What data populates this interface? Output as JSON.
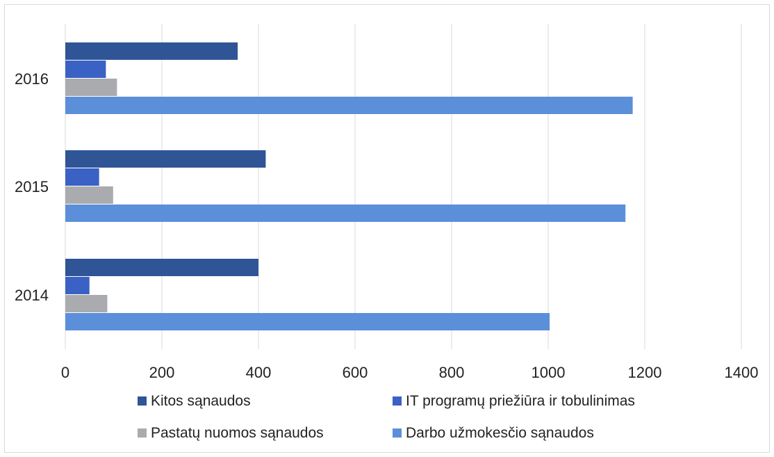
{
  "chart_data": {
    "type": "bar",
    "orientation": "horizontal",
    "categories": [
      "2014",
      "2015",
      "2016"
    ],
    "series": [
      {
        "name": "Kitos sąnaudos",
        "color": "#2f5597",
        "values": [
          400,
          415,
          357
        ]
      },
      {
        "name": "IT programų priežiūra ir tobulinimas",
        "color": "#3a62c4",
        "values": [
          50,
          70,
          84
        ]
      },
      {
        "name": "Pastatų nuomos sąnaudos",
        "color": "#a9abae",
        "values": [
          87,
          99,
          107
        ]
      },
      {
        "name": "Darbo užmokesčio sąnaudos",
        "color": "#5b8fd9",
        "values": [
          1003,
          1160,
          1175
        ]
      }
    ],
    "x_ticks": [
      "0",
      "200",
      "400",
      "600",
      "800",
      "1000",
      "1200",
      "1400"
    ],
    "xlim": [
      0,
      1400
    ],
    "grid": "vertical",
    "legend_position": "bottom",
    "title": "",
    "xlabel": "",
    "ylabel": ""
  }
}
